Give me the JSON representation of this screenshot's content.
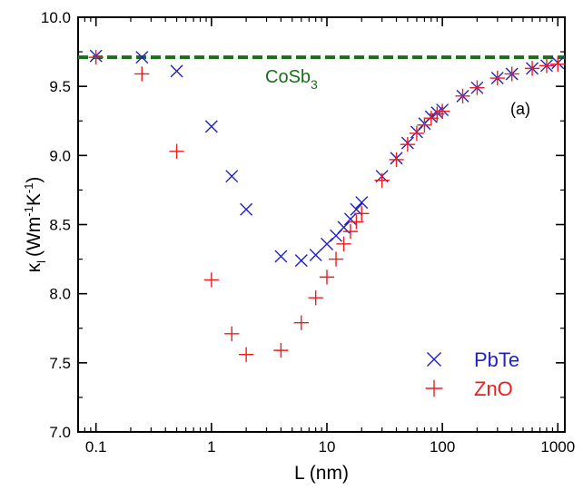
{
  "chart_data": {
    "type": "scatter",
    "title": "",
    "panel_label": "(a)",
    "xlabel": "L (nm)",
    "ylabel": {
      "base": "κ",
      "sub": "l",
      "open": "(Wm",
      "sup1": "-1",
      "mid": "K",
      "sup2": "-1",
      "close": ")"
    },
    "xscale": "log",
    "xlim": [
      0.07,
      1150
    ],
    "ylim": [
      7.0,
      10.0
    ],
    "xticks": [
      0.1,
      1,
      10,
      100,
      1000
    ],
    "xtick_labels": [
      "0.1",
      "1",
      "10",
      "100",
      "1000"
    ],
    "yticks": [
      7.0,
      7.5,
      8.0,
      8.5,
      9.0,
      9.5,
      10.0
    ],
    "ytick_labels": [
      "7.0",
      "7.5",
      "8.0",
      "8.5",
      "9.0",
      "9.5",
      "10.0"
    ],
    "grid": false,
    "legend_position": "bottom-right",
    "reference_line": {
      "label": "CoSb",
      "label_sub": "3",
      "y": 9.71,
      "color": "#1a6e1a",
      "style": "dashed"
    },
    "series": [
      {
        "name": "PbTe",
        "marker": "x",
        "color": "#1f1fcc",
        "x": [
          0.1,
          0.25,
          0.5,
          1,
          1.5,
          2,
          4,
          6,
          8,
          10,
          12,
          14,
          16,
          18,
          20,
          30,
          40,
          50,
          60,
          70,
          80,
          90,
          100,
          150,
          200,
          300,
          400,
          600,
          800,
          1000
        ],
        "y": [
          9.72,
          9.71,
          9.61,
          9.21,
          8.85,
          8.61,
          8.27,
          8.24,
          8.28,
          8.36,
          8.42,
          8.48,
          8.54,
          8.61,
          8.66,
          8.85,
          8.98,
          9.09,
          9.17,
          9.23,
          9.28,
          9.31,
          9.33,
          9.43,
          9.49,
          9.56,
          9.59,
          9.63,
          9.65,
          9.67
        ]
      },
      {
        "name": "ZnO",
        "marker": "+",
        "color": "#ee1c1c",
        "x": [
          0.1,
          0.25,
          0.5,
          1,
          1.5,
          2,
          4,
          6,
          8,
          10,
          12,
          14,
          16,
          18,
          20,
          30,
          40,
          50,
          60,
          70,
          80,
          90,
          100,
          150,
          200,
          300,
          400,
          600,
          800,
          1000
        ],
        "y": [
          9.71,
          9.59,
          9.03,
          8.1,
          7.71,
          7.56,
          7.59,
          7.79,
          7.97,
          8.12,
          8.25,
          8.36,
          8.45,
          8.52,
          8.58,
          8.82,
          8.97,
          9.08,
          9.16,
          9.22,
          9.27,
          9.3,
          9.32,
          9.43,
          9.49,
          9.56,
          9.59,
          9.63,
          9.65,
          9.66
        ]
      }
    ]
  }
}
